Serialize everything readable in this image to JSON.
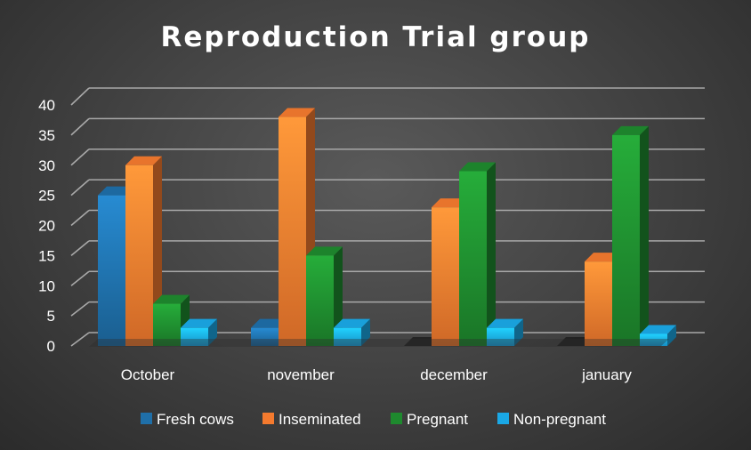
{
  "chart_data": {
    "type": "bar",
    "title": "Reproduction Trial group",
    "xlabel": "",
    "ylabel": "",
    "categories": [
      "October",
      "november",
      "december",
      "january"
    ],
    "series": [
      {
        "name": "Fresh cows",
        "values": [
          25,
          3,
          0,
          0
        ],
        "color": "#1f6fa8"
      },
      {
        "name": "Inseminated",
        "values": [
          30,
          38,
          23,
          14
        ],
        "color": "#f47a2e"
      },
      {
        "name": "Pregnant",
        "values": [
          7,
          15,
          29,
          35
        ],
        "color": "#1e8a2e"
      },
      {
        "name": "Non-pregnant",
        "values": [
          3,
          3,
          3,
          2
        ],
        "color": "#1aa8e6"
      }
    ],
    "ylim": [
      0,
      40
    ],
    "yticks": [
      0,
      5,
      10,
      15,
      20,
      25,
      30,
      35,
      40
    ],
    "grid": true,
    "legend_position": "bottom",
    "style": "3d-clustered-column"
  }
}
